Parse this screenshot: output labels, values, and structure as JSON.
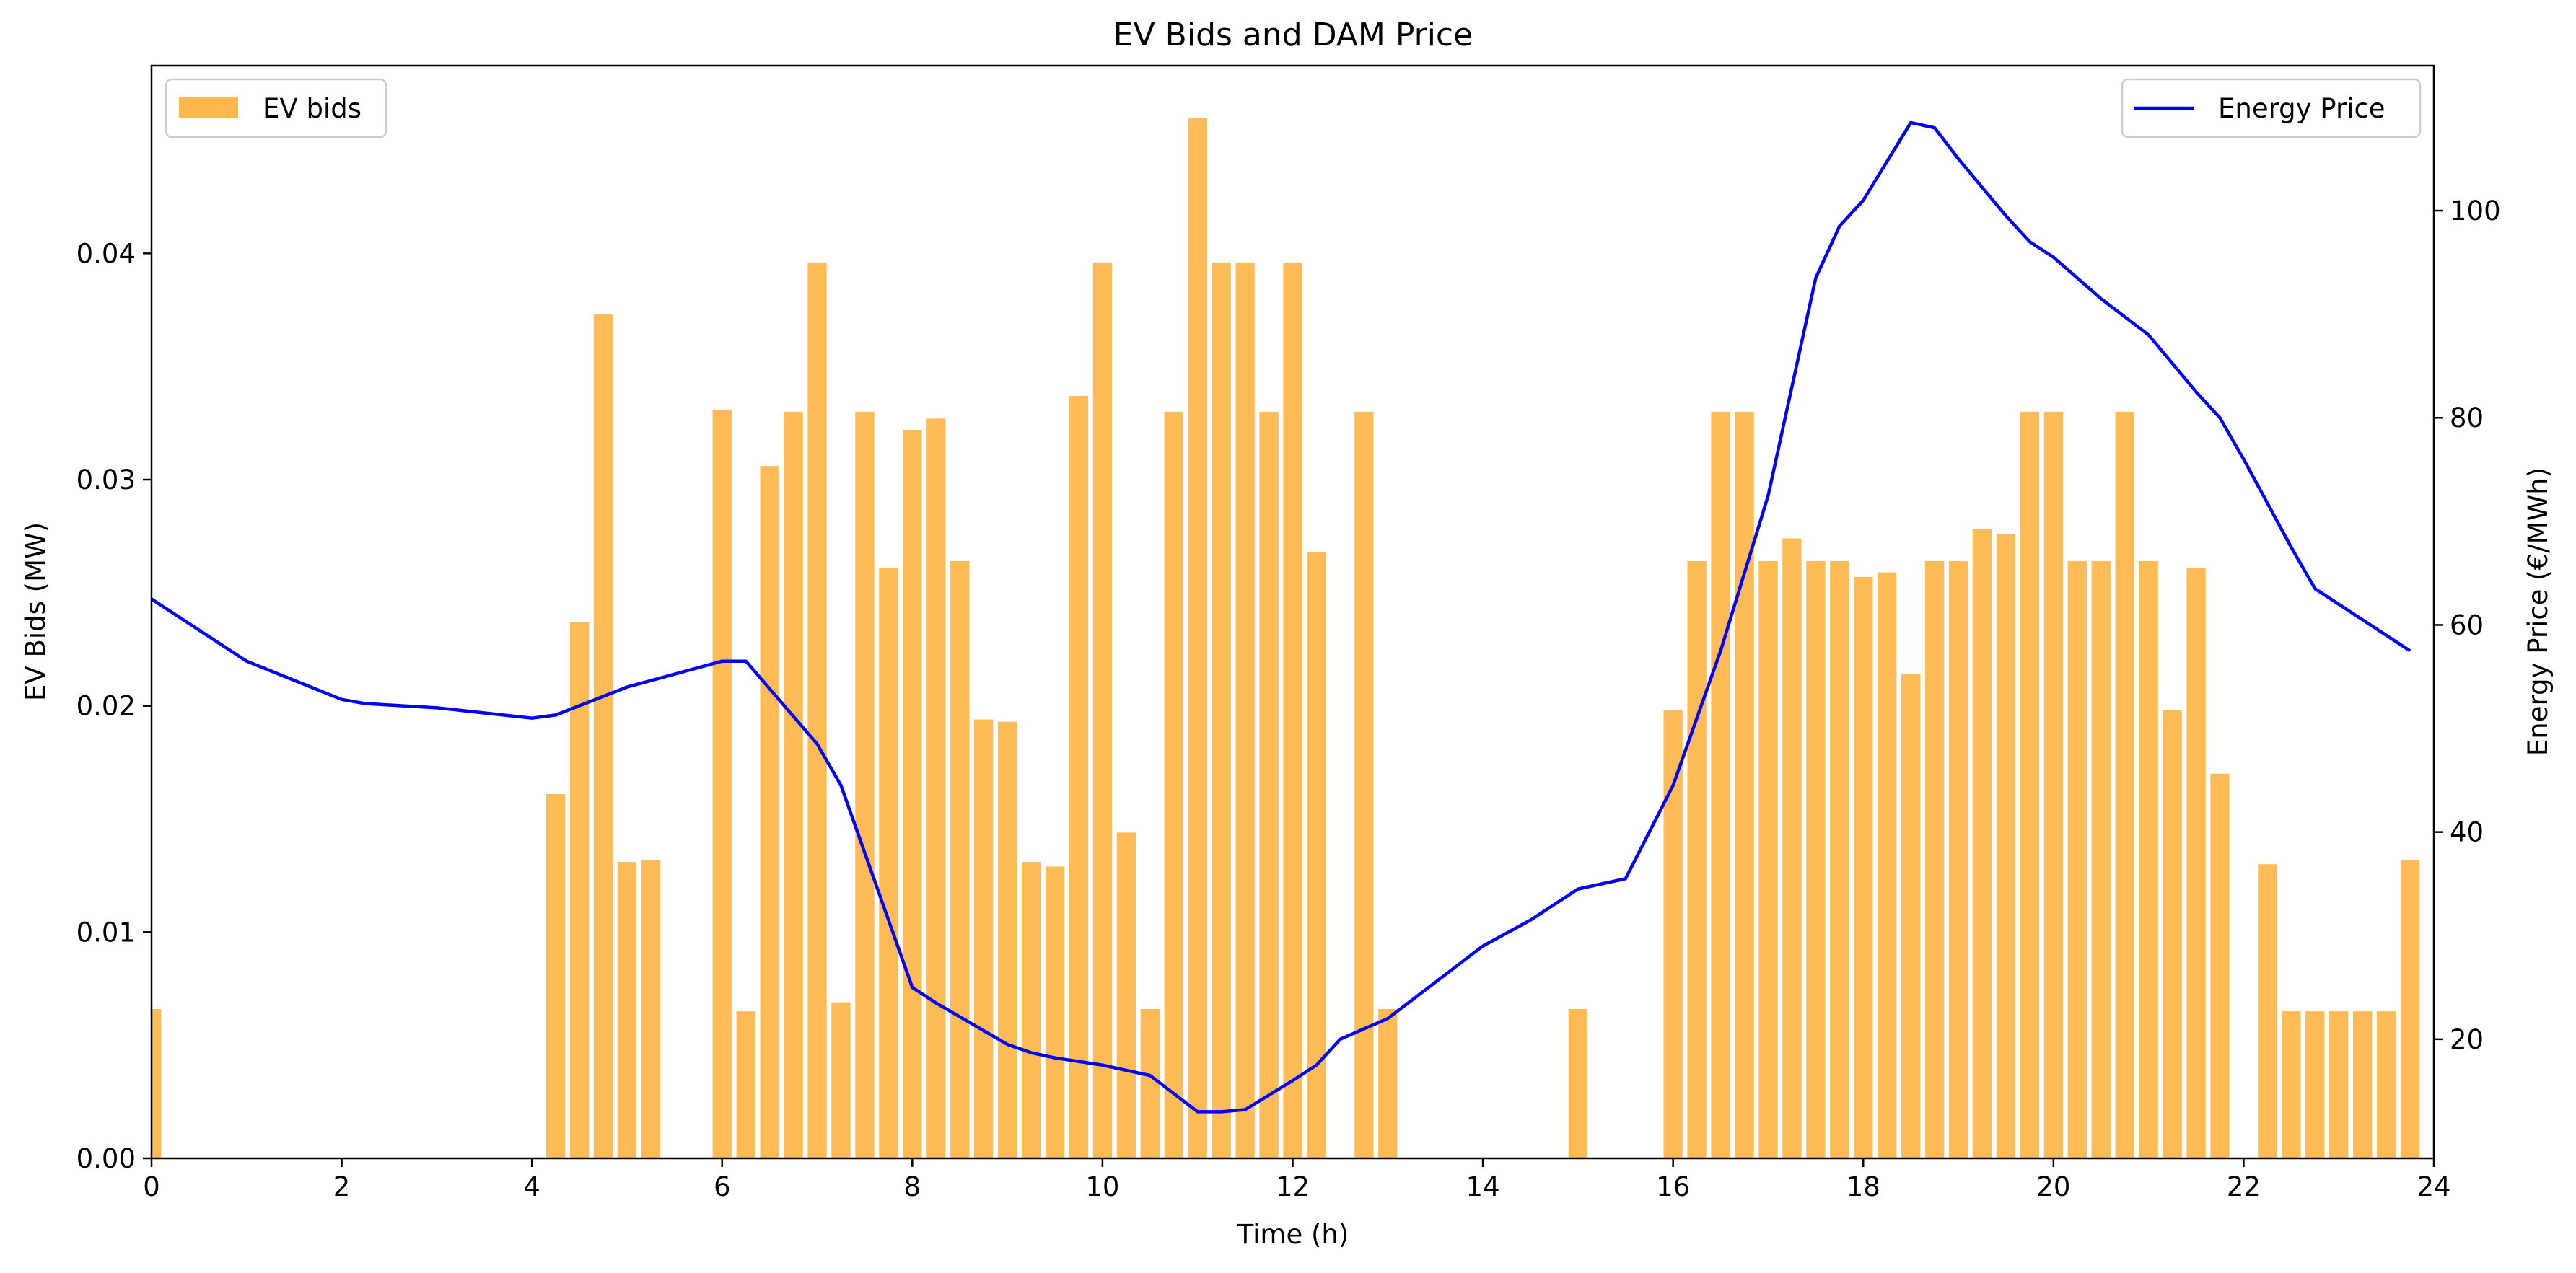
{
  "chart_data": {
    "type": "bar+line",
    "title": "EV Bids and DAM Price",
    "xlabel": "Time (h)",
    "ylabel_left": "EV Bids (MW)",
    "ylabel_right": "Energy Price (€/MWh)",
    "xlim": [
      0,
      24
    ],
    "ylim_left": [
      0,
      0.0483
    ],
    "ylim_right": [
      8.5,
      114
    ],
    "x_ticks": [
      "0",
      "2",
      "4",
      "6",
      "8",
      "10",
      "12",
      "14",
      "16",
      "18",
      "20",
      "22",
      "24"
    ],
    "y_left_ticks": [
      "0.00",
      "0.01",
      "0.02",
      "0.03",
      "0.04"
    ],
    "y_right_ticks": [
      "20",
      "40",
      "60",
      "80",
      "100"
    ],
    "grid": false,
    "legend_left": {
      "position": "top-left",
      "label": "EV bids",
      "color": "#FFB84D"
    },
    "legend_right": {
      "position": "top-right",
      "label": "Energy Price",
      "color": "#0000FF"
    },
    "bars": {
      "name": "EV bids",
      "color": "#FFB84D",
      "bin_width_h": 0.25,
      "x": [
        0,
        4.25,
        4.5,
        4.75,
        5.0,
        5.25,
        6.0,
        6.25,
        6.5,
        6.75,
        7.0,
        7.25,
        7.5,
        7.75,
        8.0,
        8.25,
        8.5,
        8.75,
        9.0,
        9.25,
        9.5,
        9.75,
        10.0,
        10.25,
        10.5,
        10.75,
        11.0,
        11.25,
        11.5,
        11.75,
        12.0,
        12.25,
        12.75,
        13.0,
        15.0,
        16.0,
        16.25,
        16.5,
        16.75,
        17.0,
        17.25,
        17.5,
        17.75,
        18.0,
        18.25,
        18.5,
        18.75,
        19.0,
        19.25,
        19.5,
        19.75,
        20.0,
        20.25,
        20.5,
        20.75,
        21.0,
        21.25,
        21.5,
        21.75,
        22.25,
        22.5,
        22.75,
        23.0,
        23.25,
        23.5,
        23.75
      ],
      "values": [
        0.0066,
        0.0161,
        0.0237,
        0.0373,
        0.0131,
        0.0132,
        0.0331,
        0.0065,
        0.0306,
        0.033,
        0.0396,
        0.0069,
        0.033,
        0.0261,
        0.0322,
        0.0327,
        0.0264,
        0.0194,
        0.0193,
        0.0131,
        0.0129,
        0.0337,
        0.0396,
        0.0144,
        0.0066,
        0.033,
        0.046,
        0.0396,
        0.0396,
        0.033,
        0.0396,
        0.0268,
        0.033,
        0.0066,
        0.0066,
        0.0198,
        0.0264,
        0.033,
        0.033,
        0.0264,
        0.0274,
        0.0264,
        0.0264,
        0.0257,
        0.0259,
        0.0214,
        0.0264,
        0.0264,
        0.0278,
        0.0276,
        0.033,
        0.033,
        0.0264,
        0.0264,
        0.033,
        0.0264,
        0.0198,
        0.0261,
        0.017,
        0.013,
        0.0065,
        0.0065,
        0.0065,
        0.0065,
        0.0065,
        0.0132
      ]
    },
    "line": {
      "name": "Energy Price",
      "color": "#0000FF",
      "x": [
        0,
        1,
        2,
        2.25,
        3,
        4,
        4.25,
        5,
        6,
        6.25,
        7,
        7.25,
        8,
        8.25,
        9,
        9.25,
        9.5,
        10,
        10.25,
        10.5,
        11,
        11.25,
        11.5,
        12,
        12.25,
        12.5,
        13,
        13.5,
        14,
        14.5,
        15,
        15.25,
        15.5,
        16,
        16.5,
        17,
        17.5,
        17.75,
        18,
        18.5,
        18.75,
        19,
        19.5,
        19.75,
        20,
        20.5,
        21,
        21.5,
        21.75,
        22,
        22.5,
        22.75,
        23,
        23.75
      ],
      "values": [
        62.5,
        56.5,
        52.8,
        52.4,
        52.0,
        51.0,
        51.3,
        54.0,
        56.5,
        56.5,
        48.5,
        44.5,
        25.0,
        23.5,
        19.5,
        18.7,
        18.2,
        17.5,
        17.0,
        16.5,
        13.0,
        13.0,
        13.2,
        16.0,
        17.5,
        20.0,
        22.0,
        25.5,
        29.0,
        31.5,
        34.5,
        35.0,
        35.5,
        44.5,
        57.5,
        72.5,
        93.5,
        98.5,
        101.0,
        108.5,
        108.0,
        105.0,
        99.5,
        97.0,
        95.5,
        91.5,
        88.0,
        82.5,
        80.0,
        76.0,
        67.5,
        63.5,
        62.0,
        57.5
      ]
    }
  }
}
